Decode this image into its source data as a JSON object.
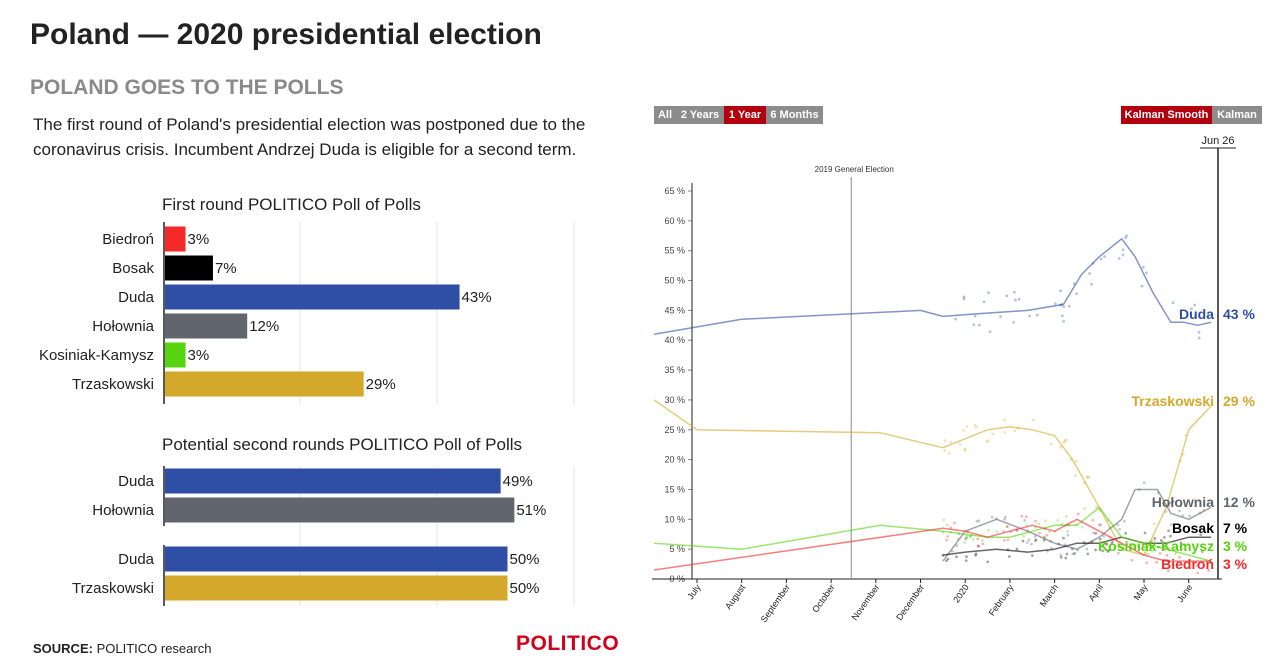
{
  "header": {
    "title": "Poland — 2020 presidential election",
    "subtitle": "POLAND GOES TO THE POLLS",
    "intro": "The first round of Poland's presidential election was postponed due to the coronavirus crisis. Incumbent Andrzej Duda is eligible for a second term."
  },
  "footer": {
    "source_label": "SOURCE:",
    "source_text": "POLITICO research",
    "logo": "POLITICO"
  },
  "controls": {
    "range_buttons": [
      "All",
      "2 Years",
      "1 Year",
      "6 Months"
    ],
    "range_selected": "1 Year",
    "smooth_buttons": [
      "Kalman Smooth",
      "Kalman"
    ],
    "smooth_selected": "Kalman Smooth"
  },
  "colors": {
    "Biedroń": "#f42a2a",
    "Bosak": "#000000",
    "Duda": "#2f4fa6",
    "Hołownia": "#60656e",
    "Kosiniak-Kamysz": "#55d40f",
    "Trzaskowski": "#d4a82a",
    "accent": "#b3000e"
  },
  "chart_data": [
    {
      "type": "bar",
      "title": "First round POLITICO Poll of Polls",
      "categories": [
        "Biedroń",
        "Bosak",
        "Duda",
        "Hołownia",
        "Kosiniak-Kamysz",
        "Trzaskowski"
      ],
      "values": [
        3,
        7,
        43,
        12,
        3,
        29
      ],
      "labels": [
        "3%",
        "7%",
        "43%",
        "12%",
        "3%",
        "29%"
      ]
    },
    {
      "type": "bar",
      "title": "Potential second rounds POLITICO Poll of Polls",
      "groups": [
        {
          "categories": [
            "Duda",
            "Hołownia"
          ],
          "values": [
            49,
            51
          ],
          "labels": [
            "49%",
            "51%"
          ]
        },
        {
          "categories": [
            "Duda",
            "Trzaskowski"
          ],
          "values": [
            50,
            50
          ],
          "labels": [
            "50%",
            "50%"
          ]
        }
      ]
    },
    {
      "type": "line",
      "ylim": [
        0,
        65
      ],
      "yticks": [
        "0 % ",
        "5 %",
        "10 %",
        "15 %",
        "20 %",
        "25 %",
        "30 %",
        "35 %",
        "40 %",
        "45 %",
        "50 %",
        "55 %",
        "60 %",
        "65 %"
      ],
      "x_months": [
        "July",
        "August",
        "September",
        "October",
        "November",
        "December",
        "2020",
        "February",
        "March",
        "April",
        "May",
        "June"
      ],
      "annotation": "2019 General Election",
      "annotation_month": 3.45,
      "date_marker": "Jun 26",
      "series": [
        {
          "name": "Duda",
          "end_label": "43 %",
          "x": [
            -1,
            1,
            5,
            5.5,
            6.4,
            7.4,
            8.2,
            8.6,
            9.0,
            9.5,
            9.8,
            10.2,
            10.6,
            10.9,
            11.2,
            11.5
          ],
          "y": [
            41,
            43.5,
            45,
            44,
            44.5,
            45,
            46,
            51,
            54,
            57,
            54,
            48,
            43,
            43,
            42.5,
            43
          ]
        },
        {
          "name": "Trzaskowski",
          "end_label": "29 %",
          "x": [
            -1,
            0,
            4.1,
            5.5,
            6.5,
            7.0,
            7.5,
            8.0,
            8.4,
            9.0,
            9.5,
            10.0,
            10.5,
            11.0,
            11.5
          ],
          "y": [
            30,
            25,
            24.5,
            22,
            25,
            25.5,
            25,
            24,
            20,
            12,
            5,
            4,
            12,
            25,
            29
          ]
        },
        {
          "name": "Hołownia",
          "end_label": "12 %",
          "x": [
            5.5,
            6.0,
            6.7,
            7.4,
            8.0,
            8.5,
            9.0,
            9.5,
            9.8,
            10.3,
            10.6,
            11.0,
            11.5
          ],
          "y": [
            3,
            8,
            10,
            8,
            6,
            5,
            7,
            10,
            15,
            15,
            11,
            10,
            12
          ]
        },
        {
          "name": "Bosak",
          "end_label": "7 %",
          "x": [
            5.5,
            6.0,
            6.7,
            7.4,
            8.0,
            8.5,
            9.0,
            9.5,
            10.0,
            10.5,
            11.0,
            11.5
          ],
          "y": [
            4,
            4.5,
            5,
            4.5,
            5,
            6,
            6,
            7,
            6,
            6,
            7,
            7
          ]
        },
        {
          "name": "Kosiniak-Kamysz",
          "end_label": "3 %",
          "x": [
            -1,
            1,
            4.1,
            5.5,
            6.5,
            7.0,
            7.5,
            8.0,
            8.5,
            9.0,
            9.5,
            10.0,
            10.5,
            11.0,
            11.5
          ],
          "y": [
            6,
            5,
            9,
            8,
            7,
            7,
            8,
            9,
            9,
            12,
            7,
            6,
            5,
            4,
            3
          ]
        },
        {
          "name": "Biedroń",
          "end_label": "3 %",
          "x": [
            -1,
            5.5,
            6.0,
            6.5,
            7.0,
            7.5,
            8.0,
            8.5,
            9.0,
            9.5,
            10.0,
            10.5,
            11.0,
            11.5
          ],
          "y": [
            1.5,
            8.5,
            8,
            7,
            8,
            9,
            8,
            10,
            8,
            6,
            4,
            3,
            3,
            3
          ]
        }
      ]
    }
  ]
}
